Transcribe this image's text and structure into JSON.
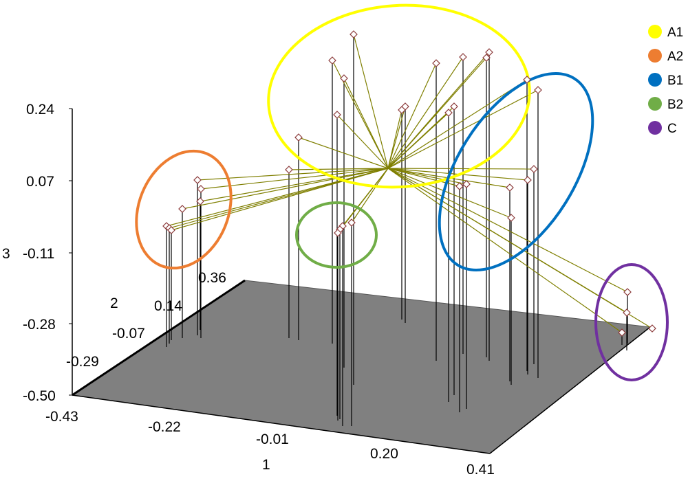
{
  "chart_data": {
    "type": "scatter",
    "subtype": "3d-scatter-with-drop-lines",
    "axes": {
      "z": {
        "label": "3",
        "ticks": [
          "0.24",
          "0.07",
          "-0.11",
          "-0.28",
          "-0.50"
        ],
        "range": [
          -0.5,
          0.24
        ]
      },
      "y": {
        "label": "2",
        "ticks": [
          "0.36",
          "0.14",
          "-0.07",
          "-0.29",
          "-0.43"
        ]
      },
      "x": {
        "label": "1",
        "ticks": [
          "-0.22",
          "-0.01",
          "0.20",
          "0.41"
        ]
      }
    },
    "legend": {
      "position": "top-right",
      "entries": [
        {
          "name": "A1",
          "color": "#ffff00"
        },
        {
          "name": "A2",
          "color": "#ed7d31"
        },
        {
          "name": "B1",
          "color": "#0070c0"
        },
        {
          "name": "B2",
          "color": "#70ad47"
        },
        {
          "name": "C",
          "color": "#7030a0"
        }
      ]
    },
    "colors": {
      "floor": "#808080",
      "spokes": "#7f7f00",
      "drop_lines": "#000000",
      "marker_fill": "#ffffff",
      "marker_edge": "#8b3a3a"
    },
    "grid": false
  }
}
